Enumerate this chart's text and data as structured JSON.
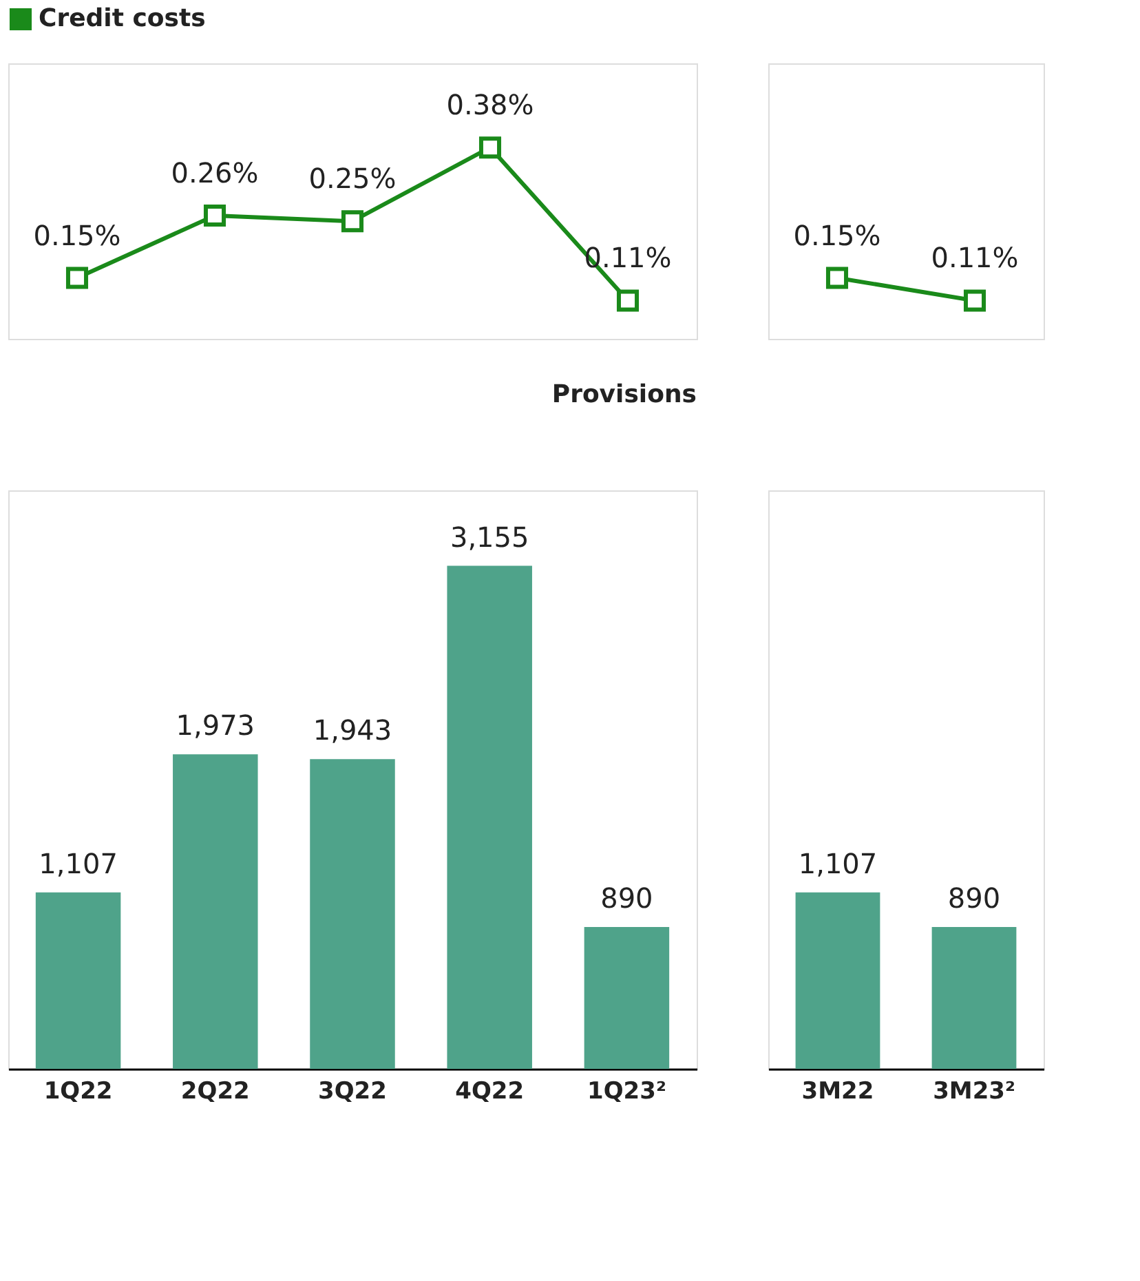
{
  "chart_data": [
    {
      "type": "line",
      "categories": [
        null,
        null,
        null,
        null,
        null
      ],
      "tick_labels": false,
      "legend": "top",
      "marker": "square",
      "series": [
        {
          "name": "Credit costs",
          "color": "#1a8a1a",
          "values": [
            0.15,
            0.26,
            0.25,
            0.38,
            0.11
          ],
          "value_labels": [
            "0.15%",
            "0.26%",
            "0.25%",
            "0.38%",
            "0.11%"
          ]
        }
      ]
    },
    {
      "type": "line",
      "categories": [
        null,
        null
      ],
      "tick_labels": false,
      "marker": "square",
      "series": [
        {
          "color": "#1a8a1a",
          "values": [
            0.15,
            0.11
          ],
          "value_labels": [
            "0.15%",
            "0.11%"
          ]
        }
      ]
    },
    {
      "type": "bar",
      "title": "Provisions",
      "categories": [
        "1Q22",
        "2Q22",
        "3Q22",
        "4Q22",
        "1Q23²"
      ],
      "series": [
        {
          "color": "#4fa38a",
          "values": [
            1107,
            1973,
            1943,
            3155,
            890
          ],
          "value_labels": [
            "1,107",
            "1,973",
            "1,943",
            "3,155",
            "890"
          ]
        }
      ]
    },
    {
      "type": "bar",
      "categories": [
        "3M22",
        "3M23²"
      ],
      "series": [
        {
          "color": "#4fa38a",
          "values": [
            1107,
            890
          ],
          "value_labels": [
            "1,107",
            "890"
          ]
        }
      ]
    }
  ]
}
